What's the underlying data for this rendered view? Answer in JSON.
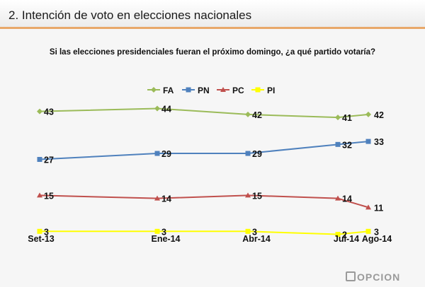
{
  "header": {
    "title": "2. Intención de voto en elecciones nacionales"
  },
  "question": "Si las elecciones presidenciales fueran el próximo domingo, ¿a qué partido votaría?",
  "logo_text": "OPCION",
  "chart_data": {
    "type": "line",
    "x": [
      "Set-13",
      "Ene-14",
      "Abr-14",
      "Jul-14",
      "Ago-14"
    ],
    "ylim": [
      0,
      50
    ],
    "grid": false,
    "legend_position": "top",
    "series": [
      {
        "name": "FA",
        "values": [
          43,
          44,
          42,
          41,
          42
        ],
        "color": "#9bbb59",
        "marker": "diamond"
      },
      {
        "name": "PN",
        "values": [
          27,
          29,
          29,
          32,
          33
        ],
        "color": "#4f81bd",
        "marker": "square"
      },
      {
        "name": "PC",
        "values": [
          15,
          14,
          15,
          14,
          11
        ],
        "color": "#c0504d",
        "marker": "triangle"
      },
      {
        "name": "PI",
        "values": [
          3,
          3,
          3,
          2,
          3
        ],
        "color": "#ffff00",
        "marker": "square"
      }
    ]
  }
}
